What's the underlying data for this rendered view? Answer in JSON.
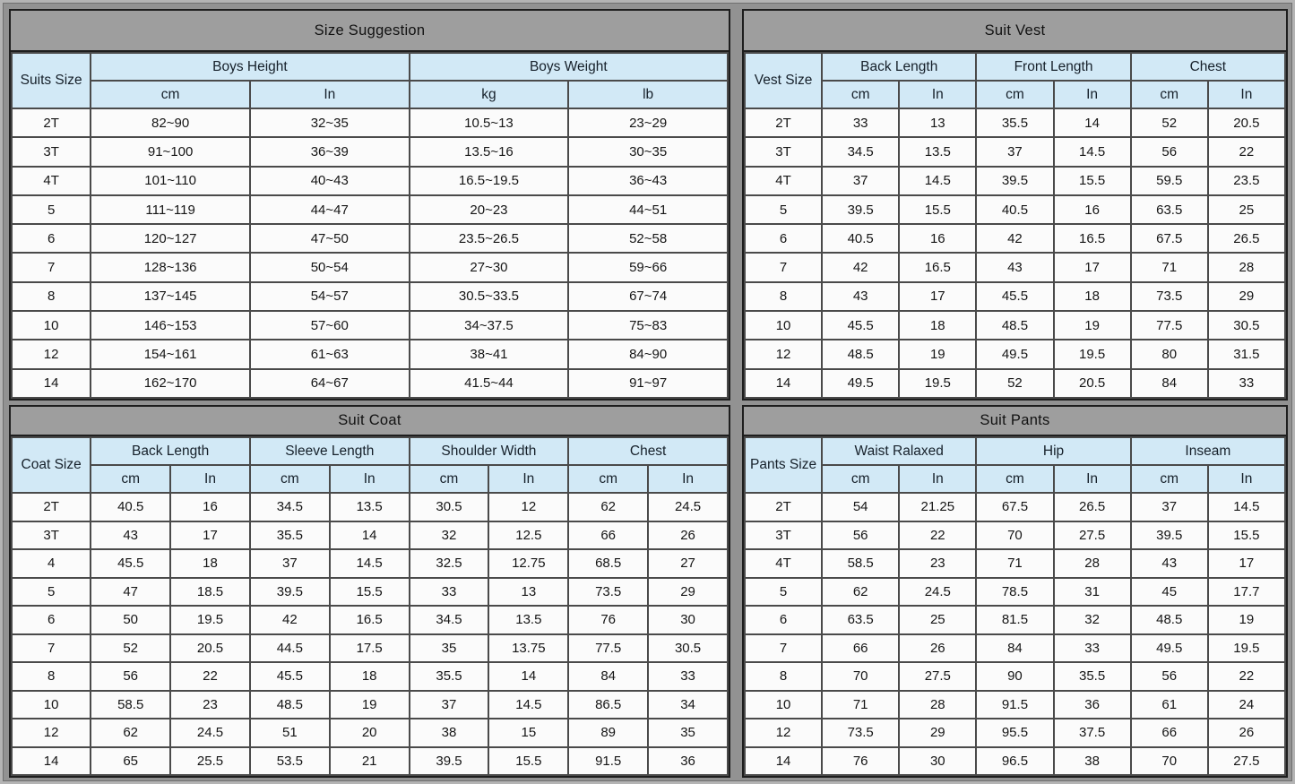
{
  "colors": {
    "page_gray": "#929292",
    "panel_title_gray": "#9e9e9e",
    "header_blue": "#d2e9f6",
    "cell_white": "#fbfbfb",
    "grid_line": "#4a4a4a"
  },
  "chart_data": [
    {
      "type": "table",
      "title": "Size Suggestion",
      "size_col_label": "Suits Size",
      "groups": [
        {
          "label": "Boys Height",
          "units": [
            "cm",
            "In"
          ]
        },
        {
          "label": "Boys Weight",
          "units": [
            "kg",
            "lb"
          ]
        }
      ],
      "rows": [
        [
          "2T",
          "82~90",
          "32~35",
          "10.5~13",
          "23~29"
        ],
        [
          "3T",
          "91~100",
          "36~39",
          "13.5~16",
          "30~35"
        ],
        [
          "4T",
          "101~110",
          "40~43",
          "16.5~19.5",
          "36~43"
        ],
        [
          "5",
          "111~119",
          "44~47",
          "20~23",
          "44~51"
        ],
        [
          "6",
          "120~127",
          "47~50",
          "23.5~26.5",
          "52~58"
        ],
        [
          "7",
          "128~136",
          "50~54",
          "27~30",
          "59~66"
        ],
        [
          "8",
          "137~145",
          "54~57",
          "30.5~33.5",
          "67~74"
        ],
        [
          "10",
          "146~153",
          "57~60",
          "34~37.5",
          "75~83"
        ],
        [
          "12",
          "154~161",
          "61~63",
          "38~41",
          "84~90"
        ],
        [
          "14",
          "162~170",
          "64~67",
          "41.5~44",
          "91~97"
        ]
      ]
    },
    {
      "type": "table",
      "title": "Suit Vest",
      "size_col_label": "Vest Size",
      "groups": [
        {
          "label": "Back Length",
          "units": [
            "cm",
            "In"
          ]
        },
        {
          "label": "Front Length",
          "units": [
            "cm",
            "In"
          ]
        },
        {
          "label": "Chest",
          "units": [
            "cm",
            "In"
          ]
        }
      ],
      "rows": [
        [
          "2T",
          "33",
          "13",
          "35.5",
          "14",
          "52",
          "20.5"
        ],
        [
          "3T",
          "34.5",
          "13.5",
          "37",
          "14.5",
          "56",
          "22"
        ],
        [
          "4T",
          "37",
          "14.5",
          "39.5",
          "15.5",
          "59.5",
          "23.5"
        ],
        [
          "5",
          "39.5",
          "15.5",
          "40.5",
          "16",
          "63.5",
          "25"
        ],
        [
          "6",
          "40.5",
          "16",
          "42",
          "16.5",
          "67.5",
          "26.5"
        ],
        [
          "7",
          "42",
          "16.5",
          "43",
          "17",
          "71",
          "28"
        ],
        [
          "8",
          "43",
          "17",
          "45.5",
          "18",
          "73.5",
          "29"
        ],
        [
          "10",
          "45.5",
          "18",
          "48.5",
          "19",
          "77.5",
          "30.5"
        ],
        [
          "12",
          "48.5",
          "19",
          "49.5",
          "19.5",
          "80",
          "31.5"
        ],
        [
          "14",
          "49.5",
          "19.5",
          "52",
          "20.5",
          "84",
          "33"
        ]
      ]
    },
    {
      "type": "table",
      "title": "Suit Coat",
      "size_col_label": "Coat Size",
      "groups": [
        {
          "label": "Back Length",
          "units": [
            "cm",
            "In"
          ]
        },
        {
          "label": "Sleeve Length",
          "units": [
            "cm",
            "In"
          ]
        },
        {
          "label": "Shoulder Width",
          "units": [
            "cm",
            "In"
          ]
        },
        {
          "label": "Chest",
          "units": [
            "cm",
            "In"
          ]
        }
      ],
      "rows": [
        [
          "2T",
          "40.5",
          "16",
          "34.5",
          "13.5",
          "30.5",
          "12",
          "62",
          "24.5"
        ],
        [
          "3T",
          "43",
          "17",
          "35.5",
          "14",
          "32",
          "12.5",
          "66",
          "26"
        ],
        [
          "4",
          "45.5",
          "18",
          "37",
          "14.5",
          "32.5",
          "12.75",
          "68.5",
          "27"
        ],
        [
          "5",
          "47",
          "18.5",
          "39.5",
          "15.5",
          "33",
          "13",
          "73.5",
          "29"
        ],
        [
          "6",
          "50",
          "19.5",
          "42",
          "16.5",
          "34.5",
          "13.5",
          "76",
          "30"
        ],
        [
          "7",
          "52",
          "20.5",
          "44.5",
          "17.5",
          "35",
          "13.75",
          "77.5",
          "30.5"
        ],
        [
          "8",
          "56",
          "22",
          "45.5",
          "18",
          "35.5",
          "14",
          "84",
          "33"
        ],
        [
          "10",
          "58.5",
          "23",
          "48.5",
          "19",
          "37",
          "14.5",
          "86.5",
          "34"
        ],
        [
          "12",
          "62",
          "24.5",
          "51",
          "20",
          "38",
          "15",
          "89",
          "35"
        ],
        [
          "14",
          "65",
          "25.5",
          "53.5",
          "21",
          "39.5",
          "15.5",
          "91.5",
          "36"
        ]
      ]
    },
    {
      "type": "table",
      "title": "Suit Pants",
      "size_col_label": "Pants Size",
      "groups": [
        {
          "label": "Waist Ralaxed",
          "units": [
            "cm",
            "In"
          ]
        },
        {
          "label": "Hip",
          "units": [
            "cm",
            "In"
          ]
        },
        {
          "label": "Inseam",
          "units": [
            "cm",
            "In"
          ]
        }
      ],
      "rows": [
        [
          "2T",
          "54",
          "21.25",
          "67.5",
          "26.5",
          "37",
          "14.5"
        ],
        [
          "3T",
          "56",
          "22",
          "70",
          "27.5",
          "39.5",
          "15.5"
        ],
        [
          "4T",
          "58.5",
          "23",
          "71",
          "28",
          "43",
          "17"
        ],
        [
          "5",
          "62",
          "24.5",
          "78.5",
          "31",
          "45",
          "17.7"
        ],
        [
          "6",
          "63.5",
          "25",
          "81.5",
          "32",
          "48.5",
          "19"
        ],
        [
          "7",
          "66",
          "26",
          "84",
          "33",
          "49.5",
          "19.5"
        ],
        [
          "8",
          "70",
          "27.5",
          "90",
          "35.5",
          "56",
          "22"
        ],
        [
          "10",
          "71",
          "28",
          "91.5",
          "36",
          "61",
          "24"
        ],
        [
          "12",
          "73.5",
          "29",
          "95.5",
          "37.5",
          "66",
          "26"
        ],
        [
          "14",
          "76",
          "30",
          "96.5",
          "38",
          "70",
          "27.5"
        ]
      ]
    }
  ]
}
